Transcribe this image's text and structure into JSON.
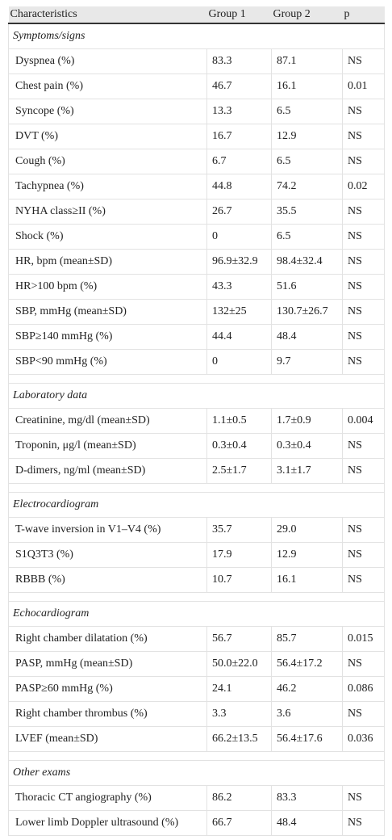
{
  "table": {
    "header": [
      "Characteristics",
      "Group 1",
      "Group 2",
      "p"
    ],
    "sections": [
      {
        "title": "Symptoms/signs",
        "rows": [
          [
            "Dyspnea (%)",
            "83.3",
            "87.1",
            "NS"
          ],
          [
            "Chest pain (%)",
            "46.7",
            "16.1",
            "0.01"
          ],
          [
            "Syncope (%)",
            "13.3",
            "6.5",
            "NS"
          ],
          [
            "DVT (%)",
            "16.7",
            "12.9",
            "NS"
          ],
          [
            "Cough (%)",
            "6.7",
            "6.5",
            "NS"
          ],
          [
            "Tachypnea (%)",
            "44.8",
            "74.2",
            "0.02"
          ],
          [
            "NYHA class≥II (%)",
            "26.7",
            "35.5",
            "NS"
          ],
          [
            "Shock (%)",
            "0",
            "6.5",
            "NS"
          ],
          [
            "HR, bpm (mean±SD)",
            "96.9±32.9",
            "98.4±32.4",
            "NS"
          ],
          [
            "HR>100 bpm (%)",
            "43.3",
            "51.6",
            "NS"
          ],
          [
            "SBP, mmHg (mean±SD)",
            "132±25",
            "130.7±26.7",
            "NS"
          ],
          [
            "SBP≥140 mmHg (%)",
            "44.4",
            "48.4",
            "NS"
          ],
          [
            "SBP<90 mmHg (%)",
            "0",
            "9.7",
            "NS"
          ]
        ]
      },
      {
        "title": "Laboratory data",
        "rows": [
          [
            "Creatinine, mg/dl (mean±SD)",
            "1.1±0.5",
            "1.7±0.9",
            "0.004"
          ],
          [
            "Troponin, μg/l (mean±SD)",
            "0.3±0.4",
            "0.3±0.4",
            "NS"
          ],
          [
            "D-dimers, ng/ml (mean±SD)",
            "2.5±1.7",
            "3.1±1.7",
            "NS"
          ]
        ]
      },
      {
        "title": "Electrocardiogram",
        "rows": [
          [
            "T-wave inversion in V1–V4 (%)",
            "35.7",
            "29.0",
            "NS"
          ],
          [
            "S1Q3T3 (%)",
            "17.9",
            "12.9",
            "NS"
          ],
          [
            "RBBB (%)",
            "10.7",
            "16.1",
            "NS"
          ]
        ]
      },
      {
        "title": "Echocardiogram",
        "rows": [
          [
            "Right chamber dilatation (%)",
            "56.7",
            "85.7",
            "0.015"
          ],
          [
            "PASP, mmHg (mean±SD)",
            "50.0±22.0",
            "56.4±17.2",
            "NS"
          ],
          [
            "PASP≥60 mmHg (%)",
            "24.1",
            "46.2",
            "0.086"
          ],
          [
            "Right chamber thrombus (%)",
            "3.3",
            "3.6",
            "NS"
          ],
          [
            "LVEF (mean±SD)",
            "66.2±13.5",
            "56.4±17.6",
            "0.036"
          ]
        ]
      },
      {
        "title": "Other exams",
        "rows": [
          [
            "Thoracic CT angiography (%)",
            "86.2",
            "83.3",
            "NS"
          ],
          [
            "Lower limb Doppler ultrasound (%)",
            "66.7",
            "48.4",
            "NS"
          ]
        ]
      }
    ]
  }
}
